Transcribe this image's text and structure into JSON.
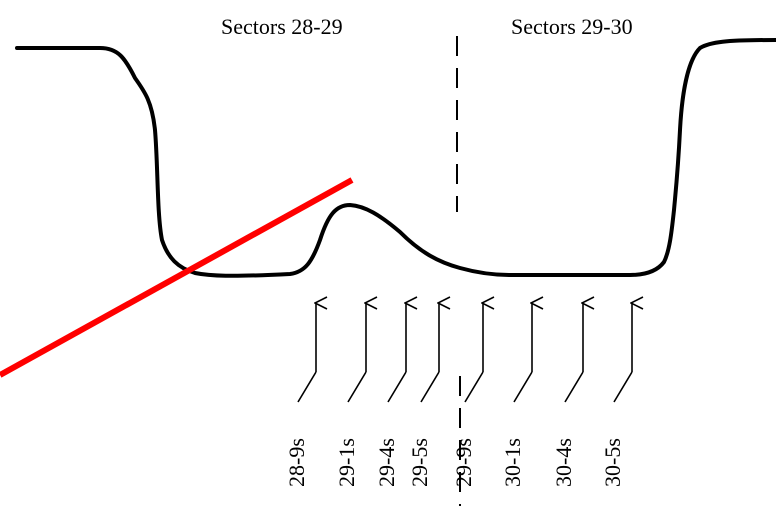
{
  "sections": [
    {
      "label": "Sectors 28-29"
    },
    {
      "label": "Sectors 29-30"
    }
  ],
  "positions": [
    {
      "label": "28-9s"
    },
    {
      "label": "29-1s"
    },
    {
      "label": "29-4s"
    },
    {
      "label": "29-5s"
    },
    {
      "label": "29-9s"
    },
    {
      "label": "30-1s"
    },
    {
      "label": "30-4s"
    },
    {
      "label": "30-5s"
    }
  ],
  "colors": {
    "profile": "#000000",
    "red_line": "#ff0000",
    "divider": "#000000"
  }
}
